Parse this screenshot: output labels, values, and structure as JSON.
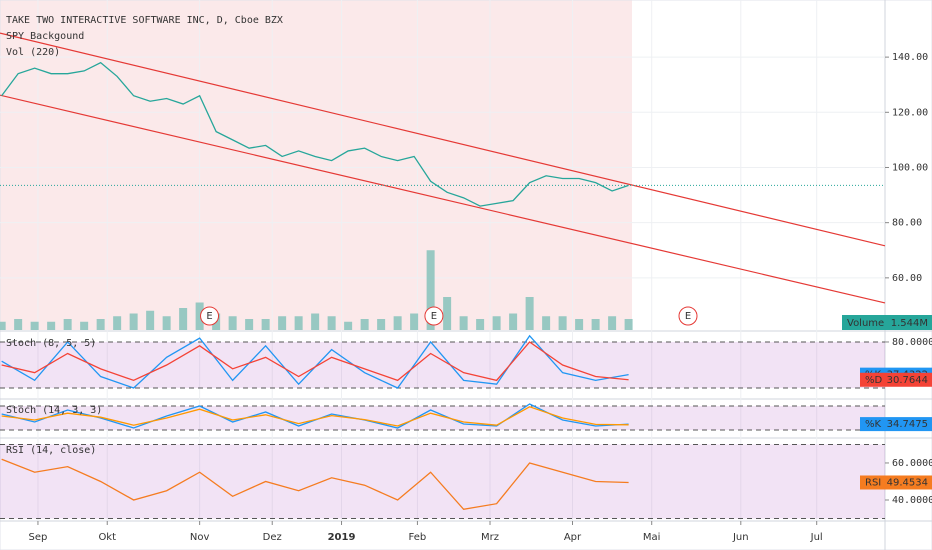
{
  "chart_data": [
    {
      "type": "line",
      "title": "TAKE TWO INTERACTIVE SOFTWARE INC, D, Cboe BZX",
      "indicators": [
        "SPY Backgound",
        "Vol (220)"
      ],
      "xlim": [
        -11.5,
        256.7
      ],
      "ylim": [
        41.1,
        160.7
      ],
      "y2lim": [
        0,
        12
      ],
      "grid": true,
      "yticks": [
        {
          "value": 140,
          "label": "140.00"
        },
        {
          "value": 120,
          "label": "120.00"
        },
        {
          "value": 100,
          "label": "100.00"
        },
        {
          "value": 80,
          "label": "80.00"
        },
        {
          "value": 60,
          "label": "60.00"
        }
      ],
      "xticks": [
        {
          "value": 0,
          "label": "Sep"
        },
        {
          "value": 21,
          "label": "Okt"
        },
        {
          "value": 49,
          "label": "Nov"
        },
        {
          "value": 71,
          "label": "Dez"
        },
        {
          "value": 92,
          "label": "2019"
        },
        {
          "value": 115,
          "label": "Feb"
        },
        {
          "value": 137,
          "label": "Mrz"
        },
        {
          "value": 162,
          "label": "Apr"
        },
        {
          "value": 186,
          "label": "Mai"
        },
        {
          "value": 213,
          "label": "Jun"
        },
        {
          "value": 236,
          "label": "Jul"
        }
      ],
      "x": [
        -11,
        -6,
        -1,
        4,
        9,
        14,
        19,
        24,
        29,
        34,
        39,
        44,
        49,
        54,
        59,
        64,
        69,
        74,
        79,
        84,
        89,
        94,
        99,
        104,
        109,
        114,
        119,
        124,
        129,
        134,
        139,
        144,
        149,
        154,
        159,
        164,
        169,
        174,
        179
      ],
      "series": [
        {
          "color": "#26a69a",
          "values": [
            126,
            134,
            136,
            134,
            134,
            135,
            138,
            133,
            126,
            124,
            125,
            123,
            126,
            113,
            110,
            107,
            108,
            104,
            106,
            104,
            102.5,
            106,
            107,
            104,
            102.5,
            104,
            95,
            91,
            89,
            86,
            87,
            88,
            94.5,
            97,
            96,
            96,
            94.5,
            91.5,
            93.5
          ]
        },
        {
          "color": "#7fbfb8",
          "axis": "y2",
          "values": [
            0.3,
            0.4,
            0.3,
            0.3,
            0.4,
            0.3,
            0.4,
            0.5,
            0.6,
            0.7,
            0.5,
            0.8,
            1.0,
            0.6,
            0.5,
            0.4,
            0.4,
            0.5,
            0.5,
            0.6,
            0.5,
            0.3,
            0.4,
            0.4,
            0.5,
            0.6,
            2.9,
            1.2,
            0.5,
            0.4,
            0.5,
            0.6,
            1.2,
            0.5,
            0.5,
            0.4,
            0.4,
            0.5,
            0.4
          ]
        }
      ],
      "trendlines": [
        {
          "color": "#e53935",
          "x": [
            -11.5,
            256.7
          ],
          "values": [
            148.7,
            71.6
          ]
        },
        {
          "color": "#e53935",
          "x": [
            -11.5,
            256.7
          ],
          "values": [
            126.2,
            50.9
          ]
        }
      ],
      "last_price": 93.5,
      "annotations": [
        {
          "text": "E",
          "x": 52
        },
        {
          "text": "E",
          "x": 120
        },
        {
          "text": "E",
          "x": 197
        }
      ],
      "badge": {
        "label": "Volume",
        "text": "1.544M"
      }
    },
    {
      "type": "line",
      "title": "Stoch (8, 5, 5)",
      "xlim": [
        -11.5,
        256.7
      ],
      "ylim": [
        7,
        91.7
      ],
      "bands": [
        20,
        80
      ],
      "yticks": [
        {
          "value": 80,
          "label": "80.0000"
        }
      ],
      "x": [
        -11,
        -1,
        9,
        19,
        29,
        39,
        49,
        59,
        69,
        79,
        89,
        99,
        109,
        119,
        129,
        139,
        149,
        159,
        169,
        179
      ],
      "series": [
        {
          "name": "%K",
          "color": "#2196f3",
          "values": [
            55,
            30,
            80,
            35,
            20,
            60,
            85,
            30,
            75,
            25,
            70,
            40,
            20,
            80,
            30,
            25,
            88,
            40,
            30,
            37.4322
          ]
        },
        {
          "name": "%D",
          "color": "#f44336",
          "values": [
            50,
            40,
            65,
            45,
            30,
            50,
            75,
            45,
            60,
            35,
            60,
            45,
            30,
            65,
            40,
            30,
            80,
            50,
            35,
            30.7644
          ]
        }
      ]
    },
    {
      "type": "line",
      "title": "Stoch (14, 3, 3)",
      "xlim": [
        -11.5,
        256.7
      ],
      "ylim": [
        2.5,
        95
      ],
      "bands": [
        20,
        80
      ],
      "yticks": [],
      "x": [
        -11,
        -1,
        9,
        19,
        29,
        39,
        49,
        59,
        69,
        79,
        89,
        99,
        109,
        119,
        129,
        139,
        149,
        159,
        169,
        179
      ],
      "series": [
        {
          "name": "%K",
          "color": "#2196f3",
          "values": [
            60,
            40,
            70,
            50,
            25,
            55,
            80,
            40,
            65,
            30,
            60,
            45,
            25,
            70,
            35,
            30,
            85,
            45,
            30,
            34.7475
          ]
        },
        {
          "color": "#ff9800",
          "values": [
            55,
            45,
            62,
            52,
            32,
            50,
            72,
            45,
            58,
            36,
            56,
            46,
            30,
            62,
            40,
            32,
            78,
            50,
            34,
            33
          ]
        }
      ]
    },
    {
      "type": "line",
      "title": "RSI (14, close)",
      "xlim": [
        -11.5,
        256.7
      ],
      "ylim": [
        29.2,
        72.4
      ],
      "bands": [
        30,
        70
      ],
      "yticks": [
        {
          "value": 60,
          "label": "60.0000"
        },
        {
          "value": 40,
          "label": "40.0000"
        }
      ],
      "x": [
        -11,
        -1,
        9,
        19,
        29,
        39,
        49,
        59,
        69,
        79,
        89,
        99,
        109,
        119,
        129,
        139,
        149,
        159,
        169,
        179
      ],
      "series": [
        {
          "name": "RSI",
          "color": "#f57c20",
          "values": [
            62,
            55,
            58,
            50,
            40,
            45,
            55,
            42,
            50,
            45,
            52,
            48,
            40,
            55,
            35,
            38,
            60,
            55,
            50,
            49.4534
          ]
        }
      ]
    }
  ]
}
